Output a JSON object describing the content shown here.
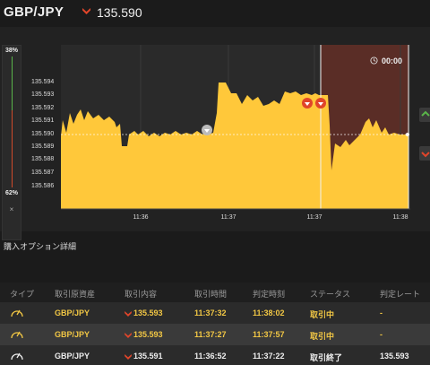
{
  "header": {
    "pair": "GBP/JPY",
    "price": "135.590"
  },
  "gauge": {
    "top": "38%",
    "bottom": "62%",
    "close": "×"
  },
  "timer": "00:00",
  "chart": {
    "y_ticks": [
      "135.594",
      "135.593",
      "135.592",
      "135.591",
      "135.590",
      "135.589",
      "135.588",
      "135.587",
      "135.586"
    ],
    "x_ticks": [
      "11:36",
      "11:37",
      "11:37",
      "11:38"
    ]
  },
  "section_title": "購入オプション詳細",
  "table": {
    "headers": [
      "タイプ",
      "取引原資産",
      "取引内容",
      "取引時間",
      "判定時刻",
      "ステータス",
      "判定レート"
    ],
    "rows": [
      {
        "asset": "GBP/JPY",
        "content": "135.593",
        "time": "11:37:32",
        "judge": "11:38:02",
        "status": "取引中",
        "rate": "-"
      },
      {
        "asset": "GBP/JPY",
        "content": "135.593",
        "time": "11:37:27",
        "judge": "11:37:57",
        "status": "取引中",
        "rate": "-"
      },
      {
        "asset": "GBP/JPY",
        "content": "135.591",
        "time": "11:36:52",
        "judge": "11:37:22",
        "status": "取引終了",
        "rate": "135.593"
      }
    ]
  },
  "colors": {
    "area": "#ffc83a",
    "down": "#e0452a",
    "up": "#5ab54a",
    "expiry_zone": "#5a2d26"
  }
}
